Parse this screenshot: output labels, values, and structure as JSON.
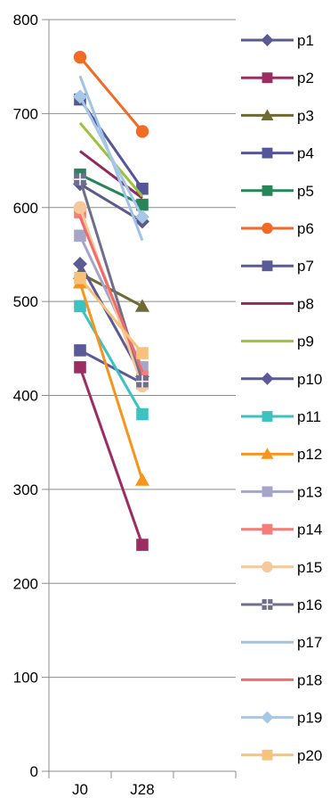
{
  "chart_data": {
    "type": "line",
    "categories": [
      "J0",
      "J28"
    ],
    "ylim": [
      0,
      800
    ],
    "yticks": [
      0,
      100,
      200,
      300,
      400,
      500,
      600,
      700,
      800
    ],
    "grid": true,
    "legend_position": "right",
    "series": [
      {
        "name": "p1",
        "values": [
          625,
          585
        ],
        "color": "#5b5a8f",
        "marker": "diamond"
      },
      {
        "name": "p2",
        "values": [
          430,
          241
        ],
        "color": "#9b2d62",
        "marker": "square"
      },
      {
        "name": "p3",
        "values": [
          530,
          495
        ],
        "color": "#6d6b33",
        "marker": "triangle"
      },
      {
        "name": "p4",
        "values": [
          715,
          620
        ],
        "color": "#55559a",
        "marker": "square"
      },
      {
        "name": "p5",
        "values": [
          635,
          603
        ],
        "color": "#27855a",
        "marker": "square"
      },
      {
        "name": "p6",
        "values": [
          760,
          681
        ],
        "color": "#f26b24",
        "marker": "circle"
      },
      {
        "name": "p7",
        "values": [
          448,
          413
        ],
        "color": "#5a5a98",
        "marker": "square"
      },
      {
        "name": "p8",
        "values": [
          660,
          610
        ],
        "color": "#8e2a5c",
        "marker": "none"
      },
      {
        "name": "p9",
        "values": [
          690,
          612
        ],
        "color": "#9bc23c",
        "marker": "none"
      },
      {
        "name": "p10",
        "values": [
          540,
          420
        ],
        "color": "#5b5a96",
        "marker": "diamond"
      },
      {
        "name": "p11",
        "values": [
          495,
          380
        ],
        "color": "#3ec1c1",
        "marker": "square"
      },
      {
        "name": "p12",
        "values": [
          520,
          310
        ],
        "color": "#f7941d",
        "marker": "triangle"
      },
      {
        "name": "p13",
        "values": [
          570,
          430
        ],
        "color": "#a5a5c8",
        "marker": "square"
      },
      {
        "name": "p14",
        "values": [
          595,
          420
        ],
        "color": "#f47f7a",
        "marker": "square"
      },
      {
        "name": "p15",
        "values": [
          600,
          410
        ],
        "color": "#f7c99a",
        "marker": "circle"
      },
      {
        "name": "p16",
        "values": [
          630,
          415
        ],
        "color": "#6f6f8c",
        "marker": "plus"
      },
      {
        "name": "p17",
        "values": [
          740,
          565
        ],
        "color": "#9fc3e7",
        "marker": "none"
      },
      {
        "name": "p18",
        "values": [
          590,
          425
        ],
        "color": "#f26b6b",
        "marker": "none"
      },
      {
        "name": "p19",
        "values": [
          718,
          590
        ],
        "color": "#a6c8e6",
        "marker": "diamond"
      },
      {
        "name": "p20",
        "values": [
          525,
          445
        ],
        "color": "#f7c27c",
        "marker": "square"
      }
    ]
  }
}
